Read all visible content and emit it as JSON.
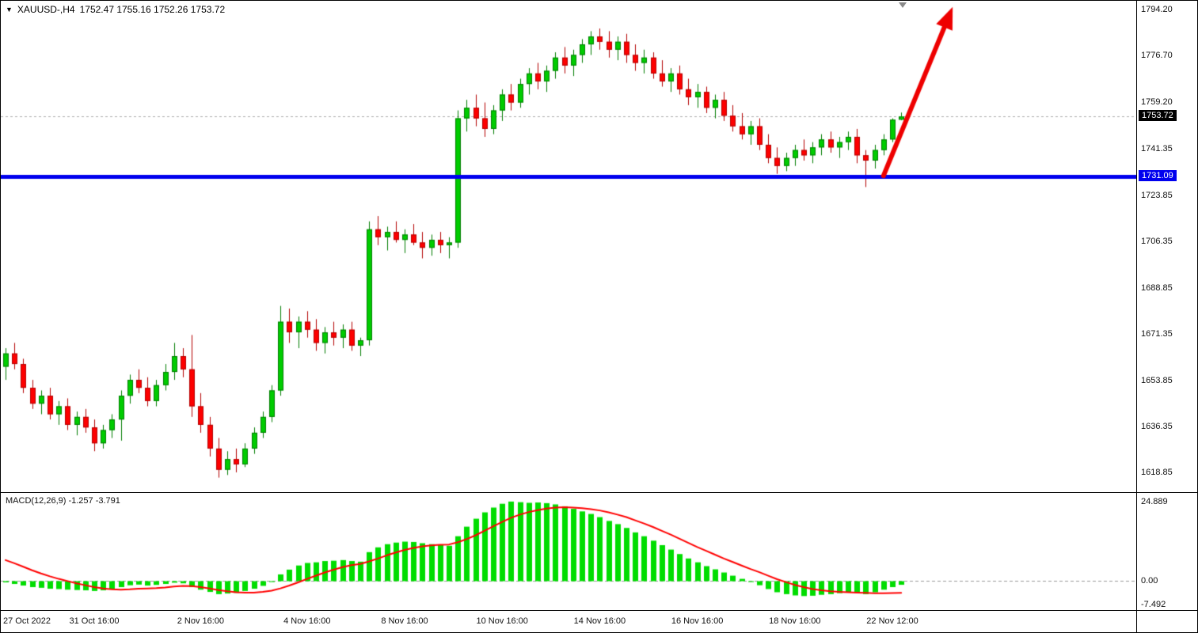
{
  "header": {
    "dropdown_icon": "▼",
    "symbol": "XAUUSD-,H4",
    "ohlc": "1752.47 1755.16 1752.26 1753.72"
  },
  "colors": {
    "bull_fill": "#00cc00",
    "bull_border": "#007d00",
    "bear_fill": "#fd0000",
    "bear_border": "#b30000",
    "macd_histogram": "#00dd00",
    "macd_signal": "#ff0000",
    "macd_zero_line": "#9a9a9a",
    "horizontal_line": "#0000ee",
    "current_price_line": "#aaaaaa",
    "arrow": "#ee0000",
    "current_tag_bg": "#000000",
    "hline_tag_bg": "#0000ee",
    "axis_text": "#111111"
  },
  "price_axis": {
    "labels": [
      {
        "text": "1794.20",
        "price": 1794.2
      },
      {
        "text": "1776.70",
        "price": 1776.7
      },
      {
        "text": "1759.20",
        "price": 1759.2
      },
      {
        "text": "1741.35",
        "price": 1741.35
      },
      {
        "text": "1723.85",
        "price": 1723.85
      },
      {
        "text": "1706.35",
        "price": 1706.35
      },
      {
        "text": "1688.85",
        "price": 1688.85
      },
      {
        "text": "1671.35",
        "price": 1671.35
      },
      {
        "text": "1653.85",
        "price": 1653.85
      },
      {
        "text": "1636.35",
        "price": 1636.35
      },
      {
        "text": "1618.85",
        "price": 1618.85
      }
    ],
    "current_tag": {
      "text": "1753.72",
      "price": 1753.72
    },
    "hline_tag": {
      "text": "1731.09",
      "price": 1731.09
    }
  },
  "macd_panel": {
    "label": "MACD(12,26,9) -1.257 -3.791",
    "axis_labels": [
      {
        "text": "24.889",
        "value": 24.889
      },
      {
        "text": "0.00",
        "value": 0
      },
      {
        "text": "-7.492",
        "value": -7.492
      }
    ]
  },
  "time_axis": {
    "labels": [
      {
        "text": "27 Oct 2022",
        "bar": 0,
        "align": "left"
      },
      {
        "text": "31 Oct 16:00",
        "bar": 10,
        "align": "center"
      },
      {
        "text": "2 Nov 16:00",
        "bar": 22,
        "align": "center"
      },
      {
        "text": "4 Nov 16:00",
        "bar": 34,
        "align": "center"
      },
      {
        "text": "8 Nov 16:00",
        "bar": 45,
        "align": "center"
      },
      {
        "text": "10 Nov 16:00",
        "bar": 56,
        "align": "center"
      },
      {
        "text": "14 Nov 16:00",
        "bar": 67,
        "align": "center"
      },
      {
        "text": "16 Nov 16:00",
        "bar": 78,
        "align": "center"
      },
      {
        "text": "18 Nov 16:00",
        "bar": 89,
        "align": "center"
      },
      {
        "text": "22 Nov 12:00",
        "bar": 100,
        "align": "center"
      }
    ]
  },
  "chart_data": [
    {
      "type": "candlestick",
      "title": "XAUUSD-,H4",
      "symbol": "XAUUSD-",
      "timeframe": "H4",
      "ylim": [
        1611.5,
        1797.5
      ],
      "last_ohlc": {
        "open": 1752.47,
        "high": 1755.16,
        "low": 1752.26,
        "close": 1753.72
      },
      "candles": [
        [
          1659,
          1666,
          1654,
          1664
        ],
        [
          1664,
          1668,
          1658,
          1660
        ],
        [
          1660,
          1662,
          1649,
          1651
        ],
        [
          1651,
          1654,
          1643,
          1645
        ],
        [
          1645,
          1650,
          1641,
          1648
        ],
        [
          1648,
          1651,
          1639,
          1641
        ],
        [
          1641,
          1646,
          1637,
          1644
        ],
        [
          1644,
          1647,
          1635,
          1637
        ],
        [
          1637,
          1642,
          1633,
          1640
        ],
        [
          1640,
          1643,
          1634,
          1636
        ],
        [
          1636,
          1639,
          1627,
          1630
        ],
        [
          1630,
          1637,
          1628,
          1635
        ],
        [
          1635,
          1641,
          1632,
          1639
        ],
        [
          1639,
          1650,
          1631,
          1648
        ],
        [
          1648,
          1656,
          1645,
          1654
        ],
        [
          1654,
          1658,
          1649,
          1651
        ],
        [
          1651,
          1655,
          1644,
          1646
        ],
        [
          1646,
          1654,
          1644,
          1652
        ],
        [
          1652,
          1660,
          1650,
          1657
        ],
        [
          1657,
          1668,
          1654,
          1663
        ],
        [
          1663,
          1666,
          1655,
          1658
        ],
        [
          1658,
          1671,
          1640,
          1644
        ],
        [
          1644,
          1649,
          1634,
          1637
        ],
        [
          1637,
          1640,
          1625,
          1628
        ],
        [
          1628,
          1632,
          1617,
          1620
        ],
        [
          1620,
          1627,
          1618,
          1624
        ],
        [
          1624,
          1628,
          1619,
          1622
        ],
        [
          1622,
          1630,
          1621,
          1628
        ],
        [
          1628,
          1636,
          1626,
          1634
        ],
        [
          1634,
          1642,
          1632,
          1640
        ],
        [
          1640,
          1652,
          1638,
          1650
        ],
        [
          1650,
          1682,
          1648,
          1676
        ],
        [
          1676,
          1681,
          1668,
          1672
        ],
        [
          1672,
          1678,
          1666,
          1676
        ],
        [
          1676,
          1680,
          1670,
          1673
        ],
        [
          1673,
          1677,
          1665,
          1668
        ],
        [
          1668,
          1674,
          1664,
          1672
        ],
        [
          1672,
          1676,
          1667,
          1670
        ],
        [
          1670,
          1675,
          1666,
          1673
        ],
        [
          1673,
          1676,
          1665,
          1667
        ],
        [
          1667,
          1670,
          1663,
          1669
        ],
        [
          1669,
          1714,
          1667,
          1711
        ],
        [
          1711,
          1716,
          1705,
          1708
        ],
        [
          1708,
          1712,
          1703,
          1710
        ],
        [
          1710,
          1714,
          1706,
          1707
        ],
        [
          1707,
          1711,
          1702,
          1709
        ],
        [
          1709,
          1713,
          1705,
          1706
        ],
        [
          1706,
          1710,
          1700,
          1704
        ],
        [
          1704,
          1709,
          1701,
          1707
        ],
        [
          1707,
          1710,
          1702,
          1705
        ],
        [
          1705,
          1708,
          1700,
          1706
        ],
        [
          1706,
          1756,
          1704,
          1753
        ],
        [
          1753,
          1760,
          1748,
          1757
        ],
        [
          1757,
          1762,
          1750,
          1753
        ],
        [
          1753,
          1759,
          1746,
          1749
        ],
        [
          1749,
          1758,
          1747,
          1756
        ],
        [
          1756,
          1764,
          1752,
          1762
        ],
        [
          1762,
          1766,
          1756,
          1759
        ],
        [
          1759,
          1768,
          1757,
          1766
        ],
        [
          1766,
          1772,
          1762,
          1770
        ],
        [
          1770,
          1774,
          1764,
          1767
        ],
        [
          1767,
          1773,
          1763,
          1771
        ],
        [
          1771,
          1778,
          1768,
          1776
        ],
        [
          1776,
          1780,
          1770,
          1773
        ],
        [
          1773,
          1779,
          1769,
          1777
        ],
        [
          1777,
          1783,
          1774,
          1781
        ],
        [
          1781,
          1786,
          1777,
          1784
        ],
        [
          1784,
          1787,
          1779,
          1782
        ],
        [
          1782,
          1786,
          1776,
          1779
        ],
        [
          1779,
          1784,
          1775,
          1782
        ],
        [
          1782,
          1785,
          1774,
          1777
        ],
        [
          1777,
          1781,
          1771,
          1774
        ],
        [
          1774,
          1779,
          1770,
          1776
        ],
        [
          1776,
          1778,
          1768,
          1770
        ],
        [
          1770,
          1775,
          1765,
          1767
        ],
        [
          1767,
          1772,
          1763,
          1770
        ],
        [
          1770,
          1773,
          1762,
          1764
        ],
        [
          1764,
          1768,
          1758,
          1761
        ],
        [
          1761,
          1766,
          1757,
          1763
        ],
        [
          1763,
          1765,
          1755,
          1757
        ],
        [
          1757,
          1762,
          1753,
          1760
        ],
        [
          1760,
          1763,
          1752,
          1754
        ],
        [
          1754,
          1758,
          1748,
          1750
        ],
        [
          1750,
          1755,
          1745,
          1747
        ],
        [
          1747,
          1752,
          1743,
          1750
        ],
        [
          1750,
          1753,
          1741,
          1743
        ],
        [
          1743,
          1747,
          1736,
          1738
        ],
        [
          1738,
          1742,
          1732,
          1735
        ],
        [
          1735,
          1740,
          1733,
          1738
        ],
        [
          1738,
          1743,
          1735,
          1741
        ],
        [
          1741,
          1745,
          1737,
          1739
        ],
        [
          1739,
          1744,
          1736,
          1742
        ],
        [
          1742,
          1747,
          1739,
          1745
        ],
        [
          1745,
          1748,
          1740,
          1742
        ],
        [
          1742,
          1746,
          1738,
          1744
        ],
        [
          1744,
          1748,
          1741,
          1746
        ],
        [
          1746,
          1749,
          1736,
          1739
        ],
        [
          1739,
          1741,
          1727,
          1737
        ],
        [
          1737,
          1743,
          1734,
          1741
        ],
        [
          1741,
          1747,
          1739,
          1745
        ],
        [
          1745,
          1753,
          1744,
          1752.5
        ],
        [
          1752.5,
          1755.2,
          1752.3,
          1753.7
        ]
      ],
      "annotations": {
        "current_price_line": {
          "price": 1753.72
        },
        "horizontal_line": {
          "price": 1731.09,
          "thickness": 5
        },
        "trend_arrow": {
          "from": {
            "bar": 99,
            "price": 1731.3
          },
          "to": {
            "bar": 106.8,
            "price": 1795.2
          }
        }
      }
    },
    {
      "type": "macd",
      "title": "MACD(12,26,9)",
      "params": [
        12,
        26,
        9
      ],
      "ylim": [
        -9.2,
        27.6
      ],
      "last_values": {
        "macd": -1.257,
        "signal": -3.791
      },
      "histogram": [
        -0.5,
        -1.0,
        -1.5,
        -2.0,
        -2.2,
        -2.5,
        -2.6,
        -2.8,
        -2.9,
        -3.0,
        -3.2,
        -3.0,
        -2.6,
        -2.0,
        -1.4,
        -1.2,
        -1.5,
        -1.3,
        -1.0,
        -0.6,
        -0.8,
        -2.0,
        -2.8,
        -3.5,
        -4.2,
        -4.0,
        -3.8,
        -3.2,
        -2.5,
        -1.6,
        -0.4,
        2.0,
        3.5,
        4.8,
        5.6,
        5.8,
        6.2,
        6.3,
        6.5,
        6.2,
        6.0,
        9.0,
        10.5,
        11.5,
        12.0,
        12.3,
        12.2,
        11.8,
        11.5,
        11.2,
        11.0,
        14.0,
        17.0,
        19.5,
        21.5,
        23.0,
        24.2,
        24.889,
        24.7,
        24.5,
        24.6,
        24.4,
        24.0,
        23.4,
        22.6,
        21.8,
        21.0,
        20.0,
        18.8,
        17.8,
        16.6,
        15.2,
        14.0,
        12.6,
        11.2,
        9.8,
        8.4,
        7.0,
        5.8,
        4.6,
        3.6,
        2.6,
        1.6,
        0.6,
        -0.4,
        -1.4,
        -2.6,
        -3.6,
        -4.2,
        -4.6,
        -4.8,
        -4.7,
        -4.4,
        -4.2,
        -3.9,
        -3.6,
        -3.8,
        -4.2,
        -3.6,
        -2.8,
        -2.0,
        -1.257
      ],
      "signal": [
        6.5,
        5.5,
        4.4,
        3.3,
        2.3,
        1.4,
        0.6,
        -0.1,
        -0.8,
        -1.4,
        -2.0,
        -2.4,
        -2.7,
        -2.8,
        -2.7,
        -2.5,
        -2.4,
        -2.3,
        -2.1,
        -1.8,
        -1.6,
        -1.7,
        -2.0,
        -2.4,
        -2.9,
        -3.3,
        -3.6,
        -3.7,
        -3.7,
        -3.5,
        -3.1,
        -2.4,
        -1.5,
        -0.5,
        0.6,
        1.6,
        2.6,
        3.5,
        4.3,
        4.9,
        5.3,
        6.1,
        7.0,
        8.0,
        8.9,
        9.7,
        10.3,
        10.8,
        11.1,
        11.3,
        11.4,
        12.1,
        13.1,
        14.3,
        15.7,
        17.1,
        18.5,
        19.8,
        20.8,
        21.6,
        22.2,
        22.7,
        23.0,
        23.1,
        23.0,
        22.8,
        22.5,
        22.1,
        21.5,
        20.8,
        20.0,
        19.0,
        18.0,
        16.9,
        15.7,
        14.5,
        13.2,
        11.9,
        10.6,
        9.4,
        8.2,
        7.0,
        5.9,
        4.8,
        3.7,
        2.7,
        1.6,
        0.5,
        -0.4,
        -1.3,
        -2.0,
        -2.6,
        -3.0,
        -3.3,
        -3.5,
        -3.6,
        -3.7,
        -3.8,
        -3.9,
        -3.9,
        -3.85,
        -3.791
      ]
    }
  ]
}
